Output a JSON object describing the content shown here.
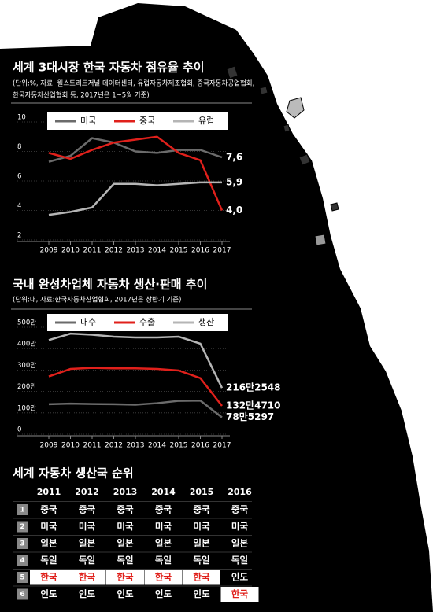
{
  "chart_data": [
    {
      "type": "line",
      "title": "세계 3대시장 한국 자동차 점유율 추이",
      "subtitle": "(단위:%, 자료: 월스트리트저널 데이터센터, 유럽자동차제조협회, 중국자동차공업협회, 한국자동차산업협회 등, 2017년은 1~5월 기준)",
      "categories": [
        "2009",
        "2010",
        "2011",
        "2012",
        "2013",
        "2014",
        "2015",
        "2016",
        "2017"
      ],
      "ylim": [
        2,
        10
      ],
      "yticks": [
        2,
        4,
        6,
        8,
        10
      ],
      "grid": true,
      "series": [
        {
          "name": "미국",
          "color": "#6b6b6b",
          "values": [
            7.3,
            7.7,
            8.9,
            8.6,
            8.0,
            7.9,
            8.1,
            8.1,
            7.6
          ],
          "value_labels": [
            null,
            null,
            null,
            null,
            null,
            null,
            null,
            null,
            "7,6"
          ]
        },
        {
          "name": "중국",
          "color": "#e0201b",
          "values": [
            7.9,
            7.5,
            8.1,
            8.6,
            8.8,
            9.0,
            7.9,
            7.4,
            4.0
          ],
          "value_labels": [
            null,
            null,
            null,
            null,
            null,
            null,
            null,
            null,
            "4,0"
          ]
        },
        {
          "name": "유럽",
          "color": "#b5b5b5",
          "values": [
            3.7,
            3.9,
            4.2,
            5.8,
            5.8,
            5.7,
            5.8,
            5.9,
            5.9
          ],
          "value_labels": [
            null,
            null,
            null,
            null,
            null,
            null,
            null,
            null,
            "5,9"
          ]
        }
      ]
    },
    {
      "type": "line",
      "title": "국내 완성차업체 자동차 생산·판매 추이",
      "subtitle": "(단위:대, 자료:한국자동차산업협회, 2017년은 상반기 기준)",
      "categories": [
        "2009",
        "2010",
        "2011",
        "2012",
        "2013",
        "2014",
        "2015",
        "2016",
        "2017"
      ],
      "ylim": [
        0,
        5000000
      ],
      "yticks": [
        0,
        {
          "value": 1000000,
          "label": "100만"
        },
        {
          "value": 2000000,
          "label": "200만"
        },
        {
          "value": 3000000,
          "label": "300만"
        },
        {
          "value": 4000000,
          "label": "400만"
        },
        {
          "value": 5000000,
          "label": "500만"
        }
      ],
      "grid": true,
      "series": [
        {
          "name": "내수",
          "color": "#6b6b6b",
          "values": [
            1400000,
            1430000,
            1410000,
            1400000,
            1380000,
            1450000,
            1560000,
            1570000,
            785297
          ],
          "value_labels": [
            null,
            null,
            null,
            null,
            null,
            null,
            null,
            null,
            "78만5297"
          ]
        },
        {
          "name": "수출",
          "color": "#e0201b",
          "values": [
            2700000,
            3050000,
            3100000,
            3080000,
            3080000,
            3050000,
            2980000,
            2620000,
            1324710
          ],
          "value_labels": [
            null,
            null,
            null,
            null,
            null,
            null,
            null,
            null,
            "132만4710"
          ]
        },
        {
          "name": "생산",
          "color": "#b5b5b5",
          "values": [
            4400000,
            4700000,
            4650000,
            4560000,
            4520000,
            4520000,
            4560000,
            4230000,
            2162548
          ],
          "value_labels": [
            null,
            null,
            null,
            null,
            null,
            null,
            null,
            null,
            "216만2548"
          ]
        }
      ]
    }
  ],
  "table": {
    "title": "세계 자동차 생산국 순위",
    "highlight": "한국",
    "highlight_color": "#e0201b",
    "columns": [
      "2011",
      "2012",
      "2013",
      "2014",
      "2015",
      "2016"
    ],
    "rows": [
      {
        "rank": 1,
        "cells": [
          "중국",
          "중국",
          "중국",
          "중국",
          "중국",
          "중국"
        ]
      },
      {
        "rank": 2,
        "cells": [
          "미국",
          "미국",
          "미국",
          "미국",
          "미국",
          "미국"
        ]
      },
      {
        "rank": 3,
        "cells": [
          "일본",
          "일본",
          "일본",
          "일본",
          "일본",
          "일본"
        ]
      },
      {
        "rank": 4,
        "cells": [
          "독일",
          "독일",
          "독일",
          "독일",
          "독일",
          "독일"
        ]
      },
      {
        "rank": 5,
        "cells": [
          "한국",
          "한국",
          "한국",
          "한국",
          "한국",
          "인도"
        ]
      },
      {
        "rank": 6,
        "cells": [
          "인도",
          "인도",
          "인도",
          "인도",
          "인도",
          "한국"
        ]
      }
    ]
  }
}
